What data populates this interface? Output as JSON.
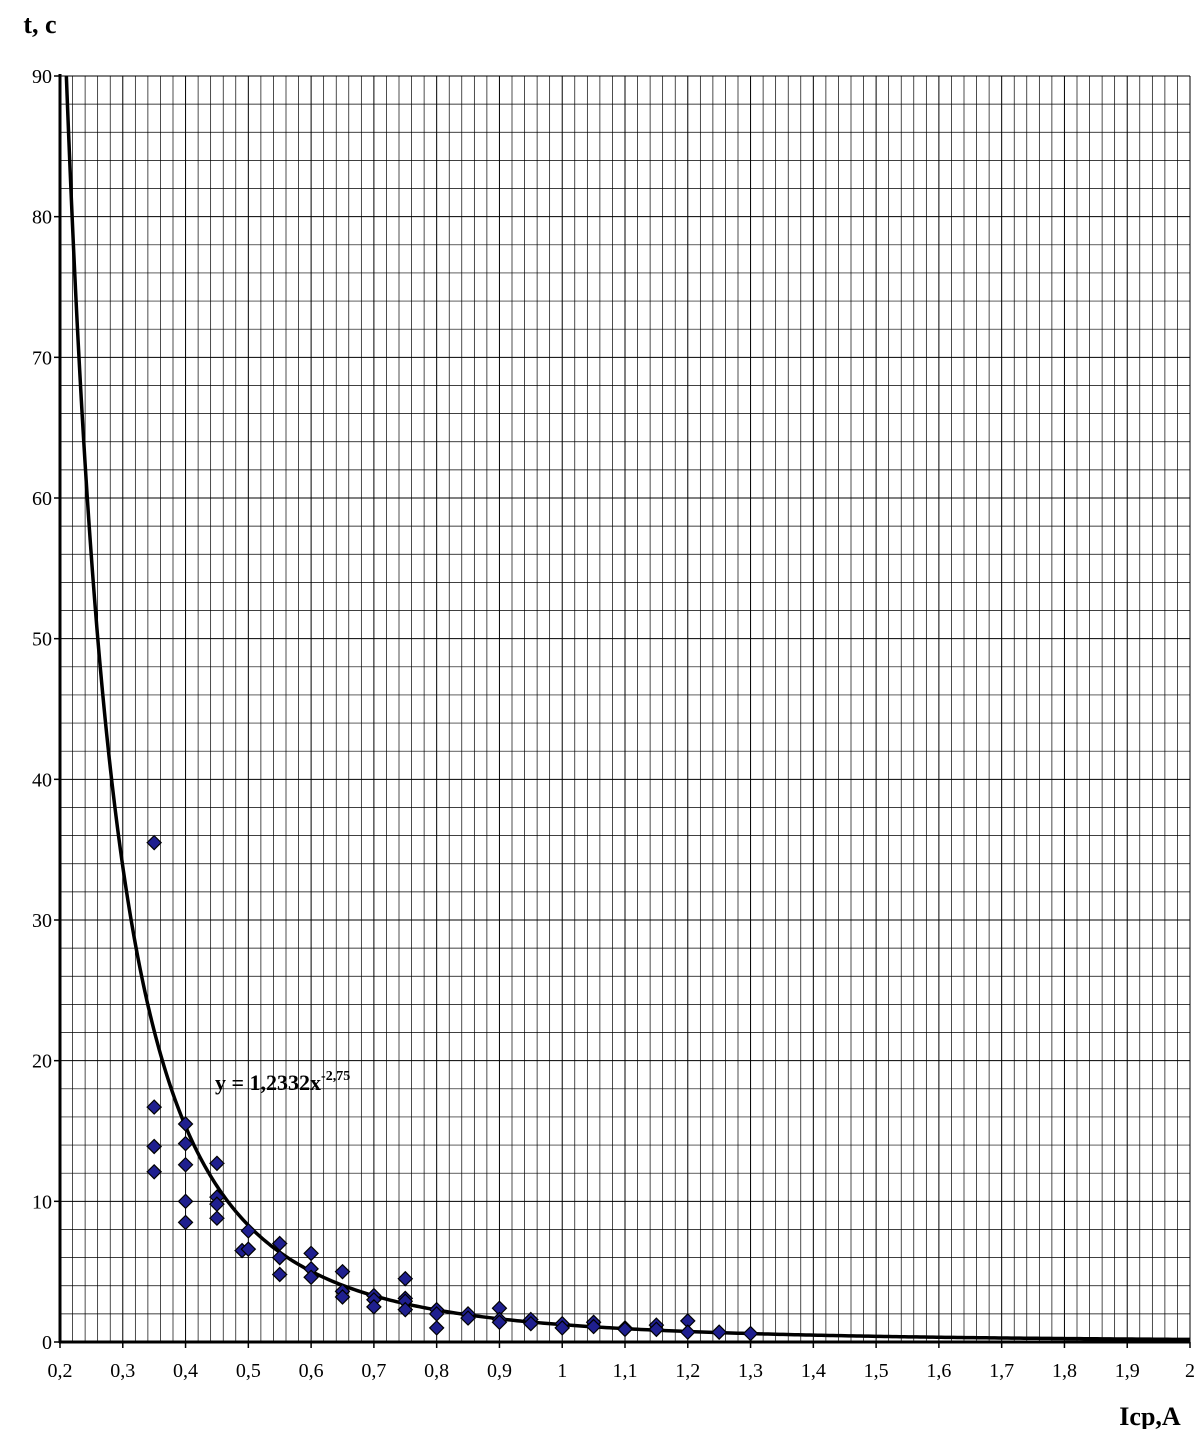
{
  "chart_data": {
    "type": "scatter",
    "ylabel": "t, c",
    "xlabel": "Icp,A",
    "xlim": [
      0.2,
      2.0
    ],
    "ylim": [
      0,
      90
    ],
    "x_ticks": [
      "0,2",
      "0,3",
      "0,4",
      "0,5",
      "0,6",
      "0,7",
      "0,8",
      "0,9",
      "1",
      "1,1",
      "1,2",
      "1,3",
      "1,4",
      "1,5",
      "1,6",
      "1,7",
      "1,8",
      "1,9",
      "2"
    ],
    "y_ticks": [
      "0",
      "10",
      "20",
      "30",
      "40",
      "50",
      "60",
      "70",
      "80",
      "90"
    ],
    "grid": "on",
    "series": [
      {
        "marker": "diamond",
        "color": "#1f1f8f",
        "points": [
          [
            0.35,
            35.5
          ],
          [
            0.35,
            16.7
          ],
          [
            0.35,
            13.9
          ],
          [
            0.35,
            12.1
          ],
          [
            0.4,
            15.5
          ],
          [
            0.4,
            14.1
          ],
          [
            0.4,
            12.6
          ],
          [
            0.4,
            10.0
          ],
          [
            0.4,
            8.5
          ],
          [
            0.45,
            12.7
          ],
          [
            0.45,
            10.3
          ],
          [
            0.45,
            9.8
          ],
          [
            0.45,
            8.8
          ],
          [
            0.49,
            6.5
          ],
          [
            0.5,
            7.9
          ],
          [
            0.5,
            6.6
          ],
          [
            0.55,
            7.0
          ],
          [
            0.55,
            6.0
          ],
          [
            0.55,
            4.8
          ],
          [
            0.6,
            6.3
          ],
          [
            0.6,
            5.2
          ],
          [
            0.6,
            4.6
          ],
          [
            0.65,
            5.0
          ],
          [
            0.65,
            3.6
          ],
          [
            0.65,
            3.2
          ],
          [
            0.7,
            3.3
          ],
          [
            0.7,
            3.0
          ],
          [
            0.7,
            2.5
          ],
          [
            0.75,
            4.5
          ],
          [
            0.75,
            3.1
          ],
          [
            0.75,
            2.9
          ],
          [
            0.75,
            2.3
          ],
          [
            0.8,
            2.3
          ],
          [
            0.8,
            2.0
          ],
          [
            0.8,
            1.0
          ],
          [
            0.85,
            2.0
          ],
          [
            0.85,
            1.7
          ],
          [
            0.9,
            2.4
          ],
          [
            0.9,
            1.6
          ],
          [
            0.9,
            1.4
          ],
          [
            0.95,
            1.6
          ],
          [
            0.95,
            1.3
          ],
          [
            1.0,
            1.3
          ],
          [
            1.0,
            1.0
          ],
          [
            1.05,
            1.4
          ],
          [
            1.05,
            1.1
          ],
          [
            1.1,
            1.0
          ],
          [
            1.1,
            0.9
          ],
          [
            1.15,
            1.2
          ],
          [
            1.15,
            0.9
          ],
          [
            1.2,
            1.5
          ],
          [
            1.2,
            0.7
          ],
          [
            1.25,
            0.7
          ],
          [
            1.3,
            0.6
          ]
        ]
      }
    ],
    "trendline": {
      "type": "power",
      "coef": 1.2332,
      "exponent": -2.75,
      "label_base": "y = 1,2332x",
      "label_exp": "-2,75"
    }
  }
}
